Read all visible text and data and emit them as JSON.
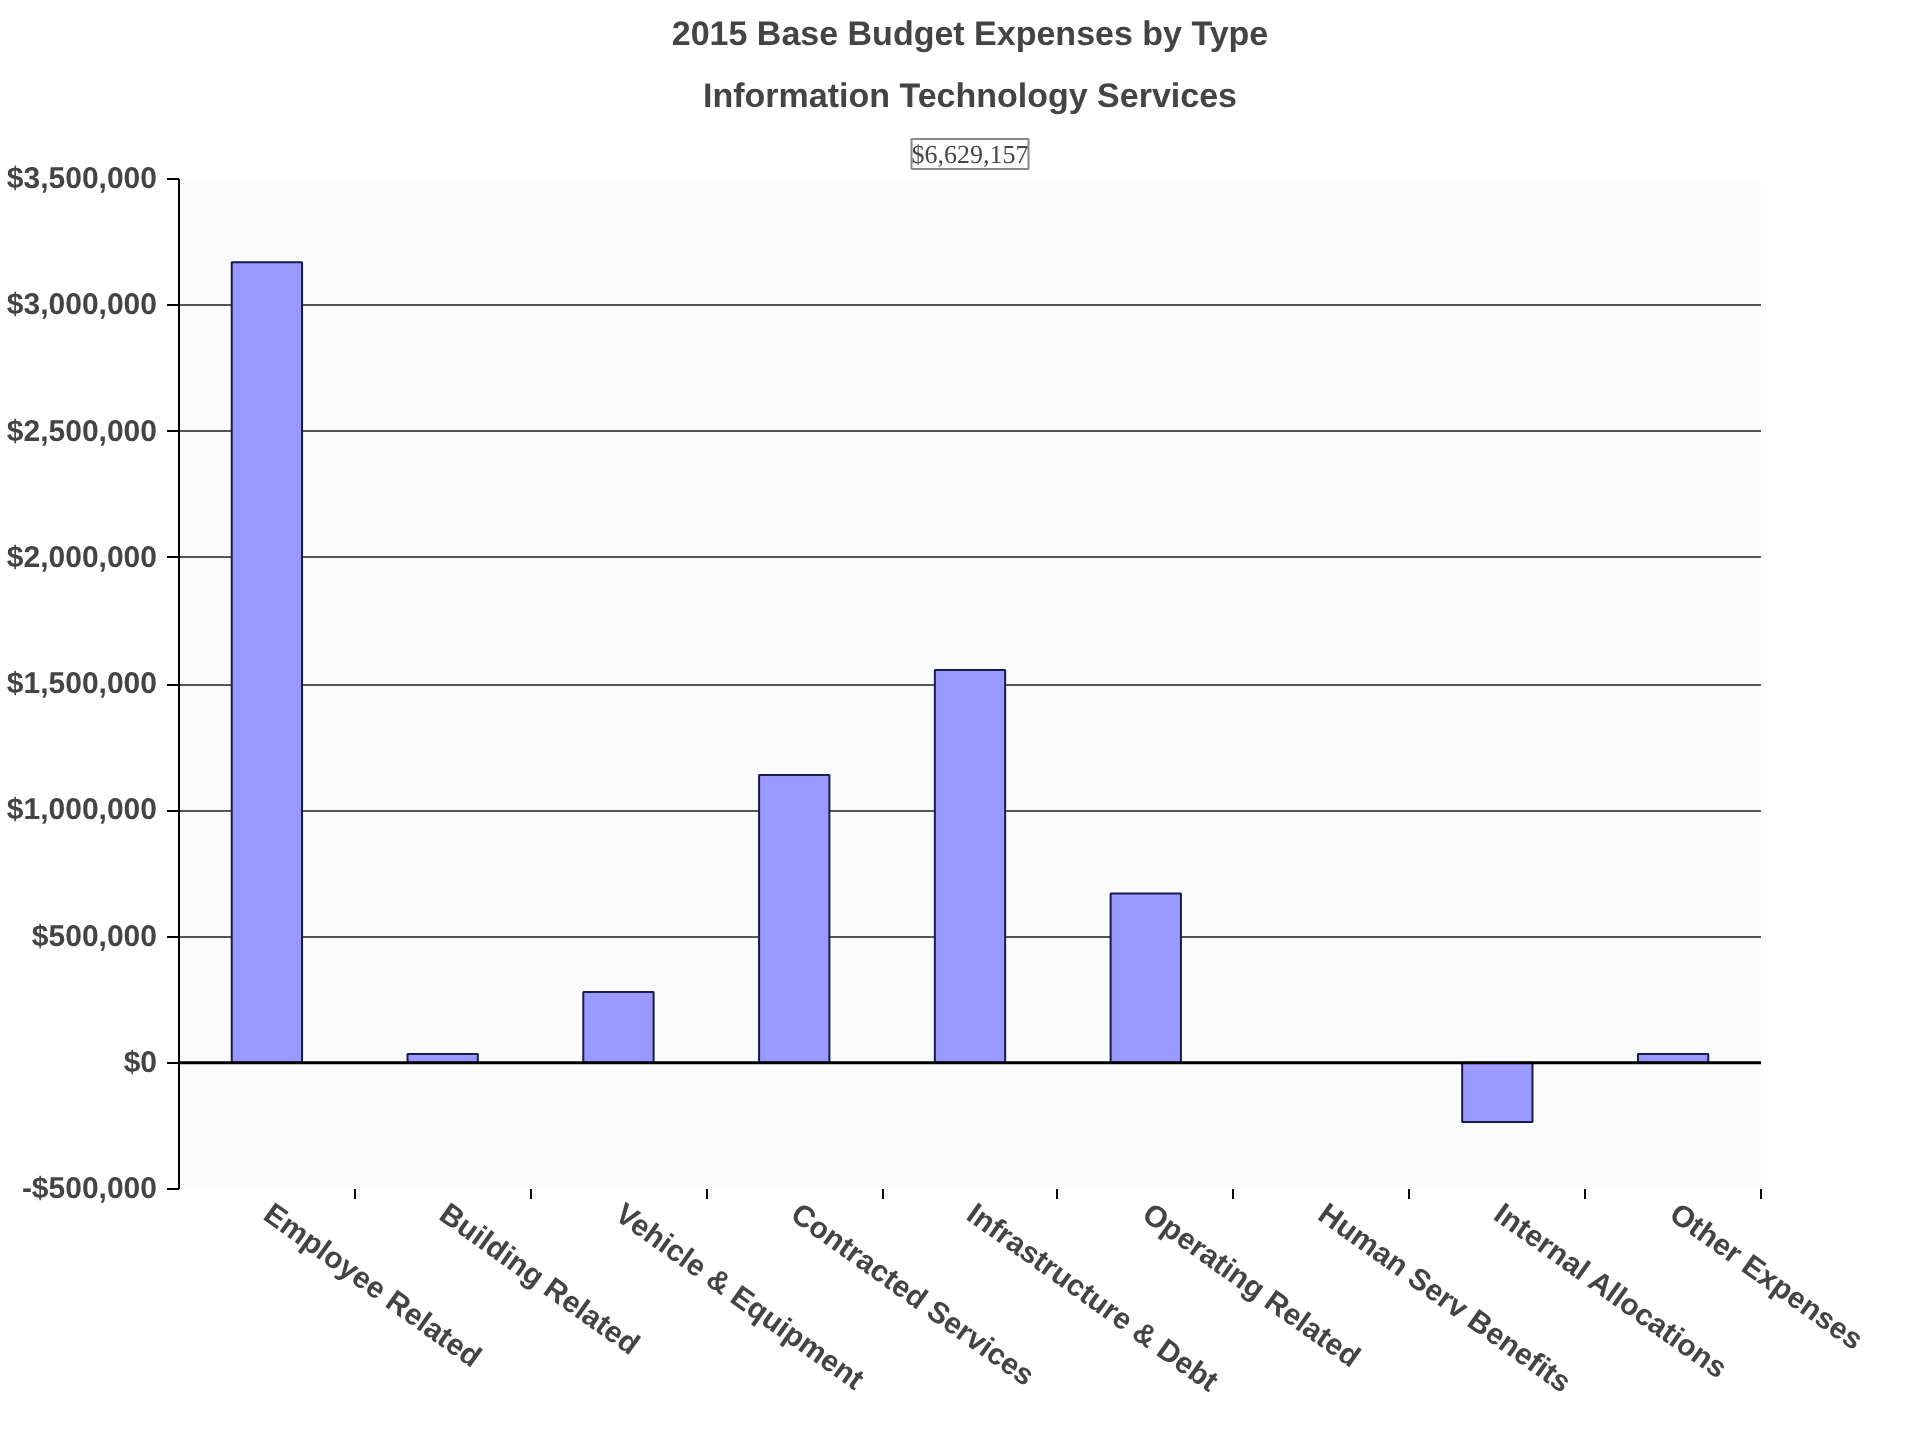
{
  "chart_data": {
    "type": "bar",
    "title": "2015 Base Budget Expenses by Type",
    "subtitle": "Information Technology Services",
    "annotations": [
      "$6,629,157"
    ],
    "categories": [
      "Employee Related",
      "Building Related",
      "Vehicle & Equipment",
      "Contracted Services",
      "Infrastructure & Debt",
      "Operating Related",
      "Human Serv Benefits",
      "Internal Allocations",
      "Other Expenses"
    ],
    "values": [
      3170000,
      35000,
      280000,
      1140000,
      1555000,
      670000,
      null,
      -235000,
      35000
    ],
    "color": "#9999ff",
    "ylim": [
      -500000,
      3500000
    ],
    "yticks": [
      {
        "value": -500000,
        "label": "-$500,000"
      },
      {
        "value": 0,
        "label": "$0"
      },
      {
        "value": 500000,
        "label": "$500,000"
      },
      {
        "value": 1000000,
        "label": "$1,000,000"
      },
      {
        "value": 1500000,
        "label": "$1,500,000"
      },
      {
        "value": 2000000,
        "label": "$2,000,000"
      },
      {
        "value": 2500000,
        "label": "$2,500,000"
      },
      {
        "value": 3000000,
        "label": "$3,000,000"
      },
      {
        "value": 3500000,
        "label": "$3,500,000"
      }
    ],
    "grid": "y"
  }
}
